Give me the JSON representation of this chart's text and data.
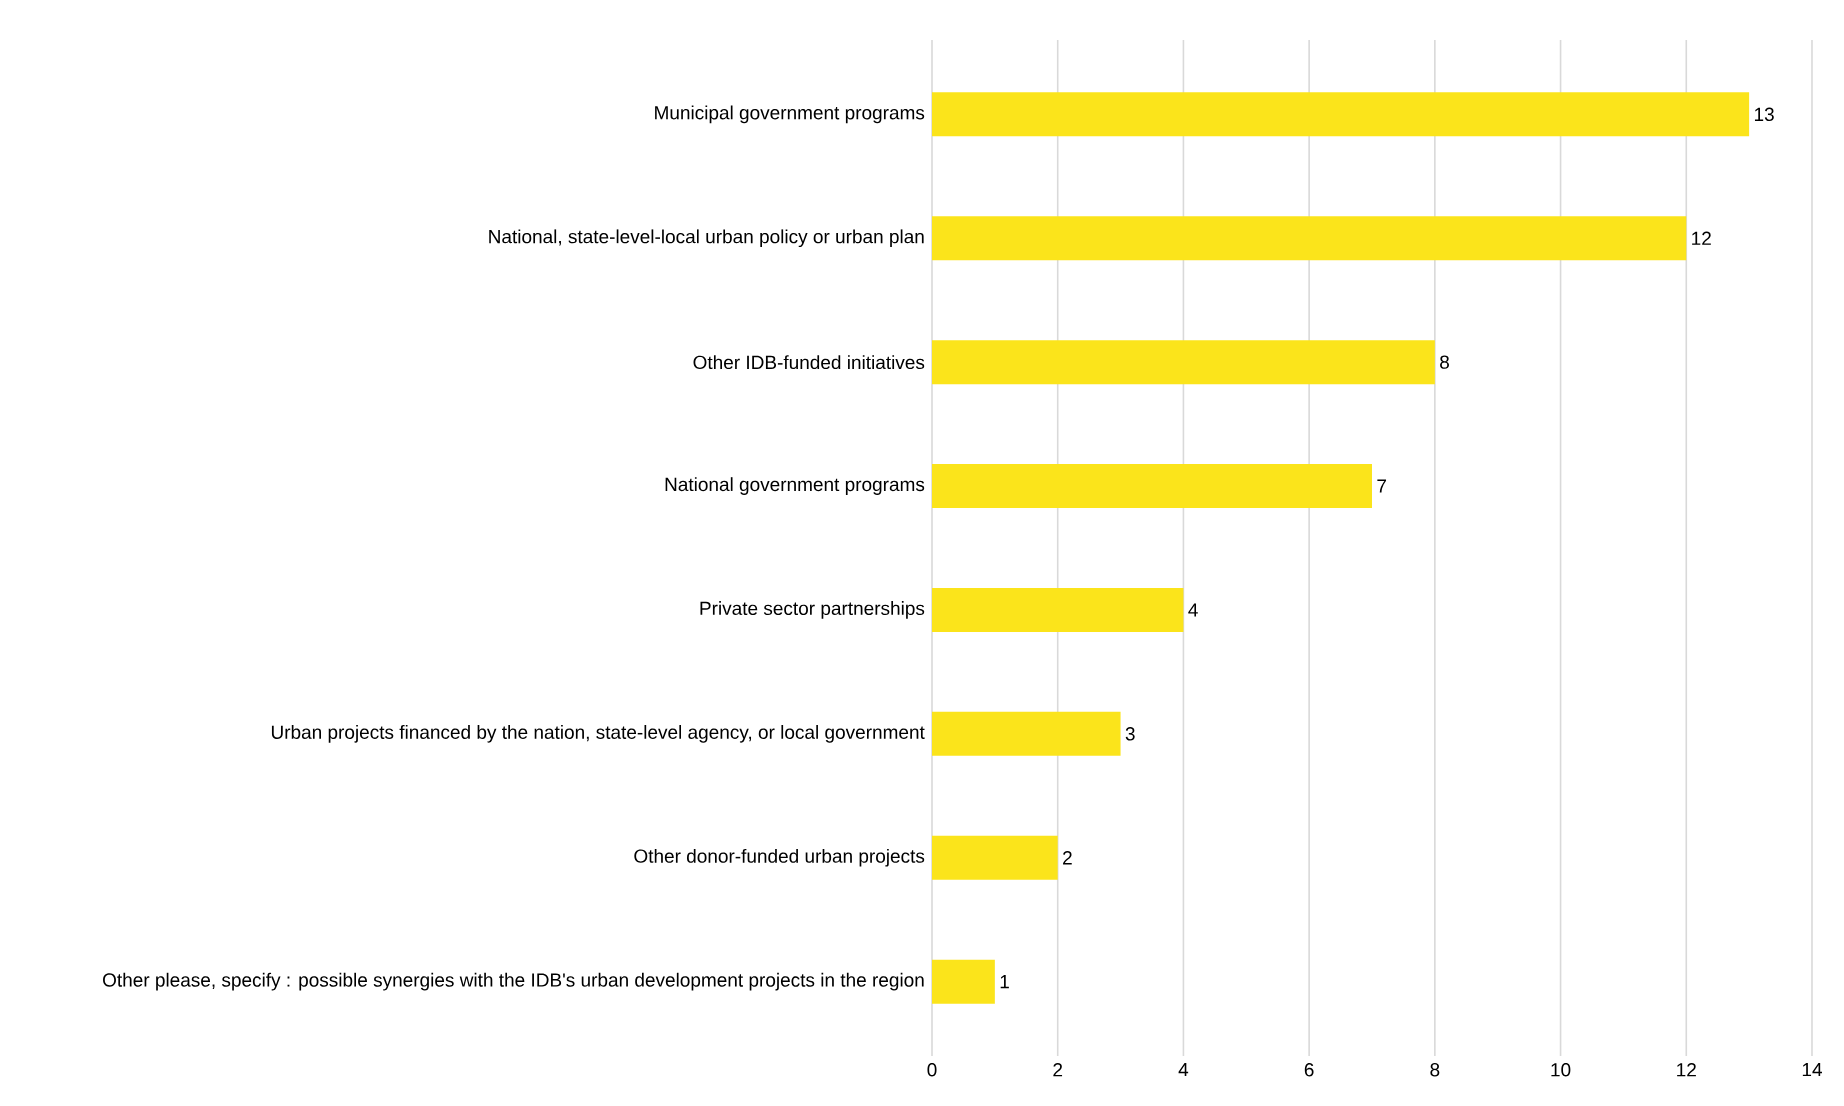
{
  "chart_data": {
    "type": "bar",
    "orientation": "horizontal",
    "categories": [
      "Municipal government programs",
      "National, state-level-local urban policy or urban plan",
      "Other IDB-funded initiatives",
      "National government programs",
      "Private sector partnerships",
      "Urban projects financed by the nation, state-level agency, or local government",
      "Other donor-funded urban projects",
      "Other please, specify : possible synergies with the IDB's urban development projects in the region"
    ],
    "values": [
      13,
      12,
      8,
      7,
      4,
      3,
      2,
      1
    ],
    "color": "#fbe41b",
    "xlim": [
      0,
      14
    ],
    "xticks": [
      0,
      2,
      4,
      6,
      8,
      10,
      12,
      14
    ],
    "grid": "x",
    "data_labels": true
  }
}
